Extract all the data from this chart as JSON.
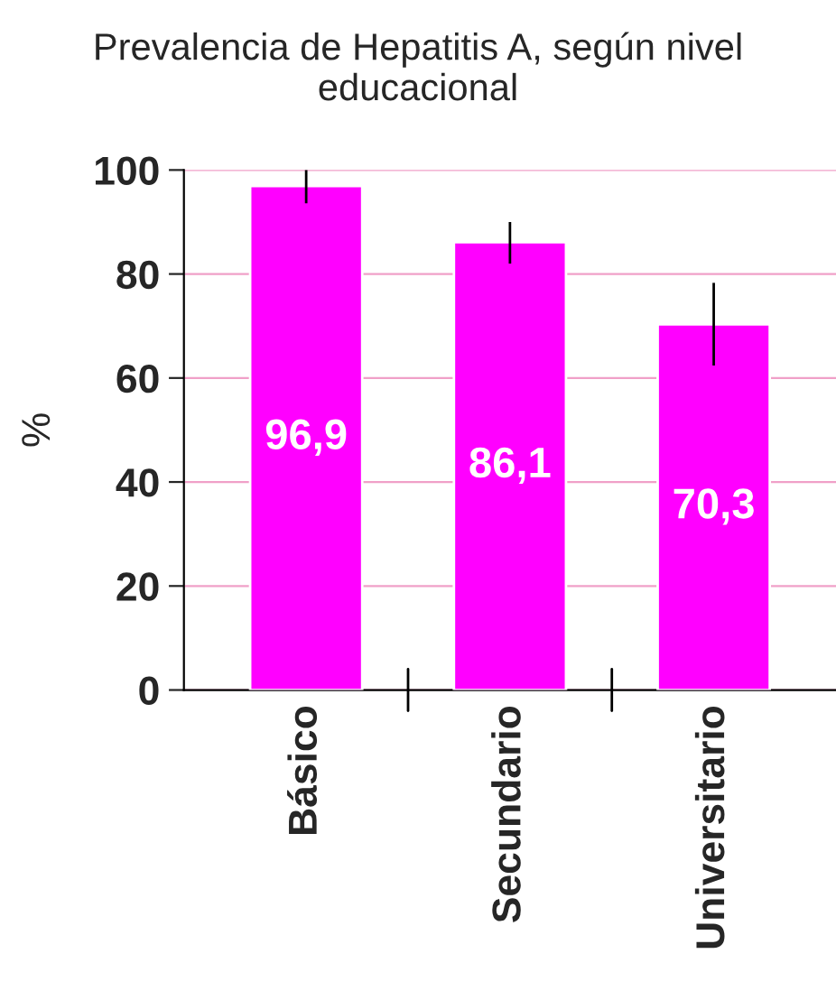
{
  "chart_data": {
    "type": "bar",
    "title": "Prevalencia de Hepatitis A, según nivel educacional",
    "ylabel": "%",
    "categories": [
      "Básico",
      "Secundario",
      "Universitario"
    ],
    "values": [
      96.9,
      86.1,
      70.3
    ],
    "color": "#ff00ff",
    "errors": [
      [
        93.6,
        100
      ],
      [
        82,
        90
      ],
      [
        62.4,
        78.3
      ]
    ],
    "value_labels": [
      "96,9",
      "86,1",
      "70,3"
    ],
    "ylim": [
      0,
      100
    ],
    "yticks": [
      0,
      20,
      40,
      60,
      80,
      100
    ],
    "grid": "y"
  }
}
